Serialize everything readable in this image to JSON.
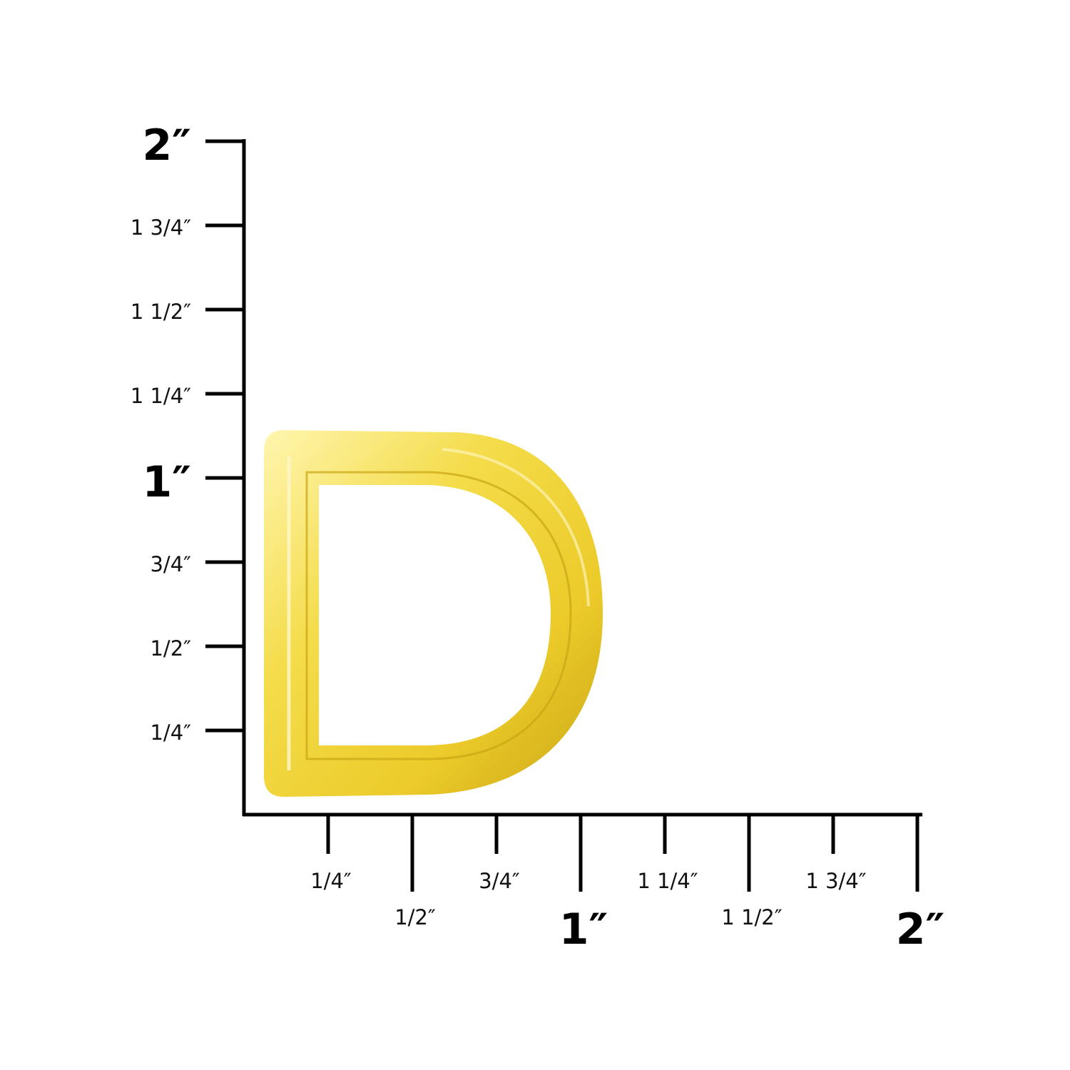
{
  "colors": {
    "ruler": "#000000",
    "ring_light": "#fff3a0",
    "ring_mid": "#f1d43a",
    "ring_dark": "#c9a514"
  },
  "product": {
    "name_icon": "brass-d-ring"
  },
  "ruler": {
    "unit": "inch",
    "vertical_ticks": [
      {
        "label": "2″",
        "value": 2,
        "major": true
      },
      {
        "label": "1 3/4″",
        "value": 1.75,
        "major": false
      },
      {
        "label": "1 1/2″",
        "value": 1.5,
        "major": false
      },
      {
        "label": "1 1/4″",
        "value": 1.25,
        "major": false
      },
      {
        "label": "1″",
        "value": 1,
        "major": true
      },
      {
        "label": "3/4″",
        "value": 0.75,
        "major": false
      },
      {
        "label": "1/2″",
        "value": 0.5,
        "major": false
      },
      {
        "label": "1/4″",
        "value": 0.25,
        "major": false
      }
    ],
    "horizontal_ticks": [
      {
        "label": "1/4″",
        "value": 0.25,
        "major": false
      },
      {
        "label": "1/2″",
        "value": 0.5,
        "major": false
      },
      {
        "label": "3/4″",
        "value": 0.75,
        "major": false
      },
      {
        "label": "1″",
        "value": 1,
        "major": true
      },
      {
        "label": "1 1/4″",
        "value": 1.25,
        "major": false
      },
      {
        "label": "1 1/2″",
        "value": 1.5,
        "major": false
      },
      {
        "label": "1 3/4″",
        "value": 1.75,
        "major": false
      },
      {
        "label": "2″",
        "value": 2,
        "major": true
      }
    ]
  }
}
